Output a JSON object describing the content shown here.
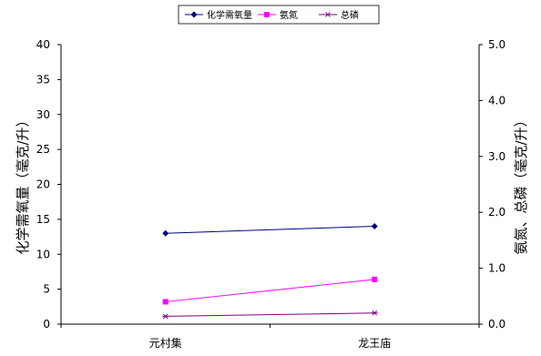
{
  "chart_data": {
    "type": "line",
    "categories": [
      "元村集",
      "龙王庙"
    ],
    "series": [
      {
        "name": "化学需氧量",
        "axis": "left",
        "color": "#000080",
        "marker": "diamond",
        "values": [
          13,
          14
        ]
      },
      {
        "name": "氨氮",
        "axis": "right",
        "color": "#ff00ff",
        "marker": "square",
        "values": [
          0.4,
          0.8
        ]
      },
      {
        "name": "总磷",
        "axis": "right",
        "color": "#800080",
        "marker": "asterisk",
        "values": [
          0.14,
          0.2
        ]
      }
    ],
    "y_left": {
      "label": "化学需氧量（毫克/升）",
      "ylim": [
        0,
        40
      ],
      "ticks": [
        "0",
        "5",
        "10",
        "15",
        "20",
        "25",
        "30",
        "35",
        "40"
      ]
    },
    "y_right": {
      "label": "氨氮、总磷（毫克/升）",
      "ylim": [
        0,
        5
      ],
      "ticks": [
        "0.0",
        "1.0",
        "2.0",
        "3.0",
        "4.0",
        "5.0"
      ]
    },
    "legend_position": "top-center",
    "grid": false
  }
}
